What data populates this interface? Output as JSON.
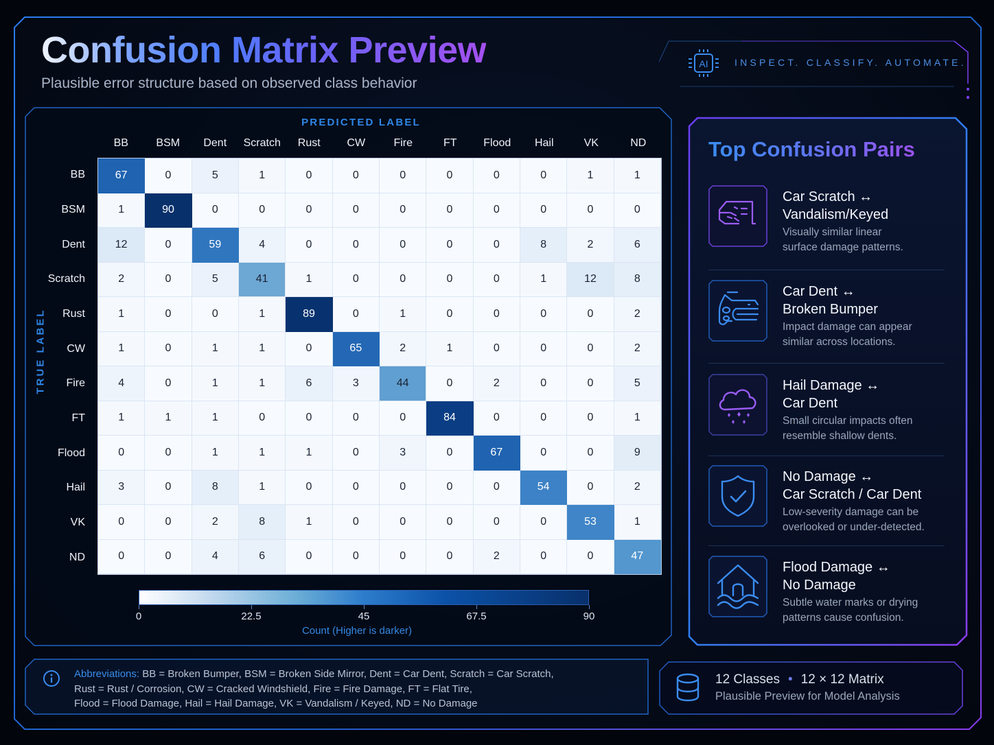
{
  "header": {
    "title": "Confusion Matrix Preview",
    "subtitle": "Plausible error structure based on observed class behavior",
    "tagline": "INSPECT. CLASSIFY. AUTOMATE.",
    "tagline_icon": "ai-chip-icon",
    "tagline_icon_text": "AI"
  },
  "matrix": {
    "x_axis_label": "PREDICTED LABEL",
    "y_axis_label": "TRUE LABEL",
    "colorbar": {
      "ticks": [
        "0",
        "22.5",
        "45",
        "67.5",
        "90"
      ],
      "label": "Count (Higher is darker)"
    }
  },
  "chart_data": {
    "type": "heatmap",
    "title": "Confusion Matrix Preview",
    "subtitle": "Plausible error structure based on observed class behavior",
    "xlabel": "PREDICTED LABEL",
    "ylabel": "TRUE LABEL",
    "x_categories": [
      "BB",
      "BSM",
      "Dent",
      "Scratch",
      "Rust",
      "CW",
      "Fire",
      "FT",
      "Flood",
      "Hail",
      "VK",
      "ND"
    ],
    "y_categories": [
      "BB",
      "BSM",
      "Dent",
      "Scratch",
      "Rust",
      "CW",
      "Fire",
      "FT",
      "Flood",
      "Hail",
      "VK",
      "ND"
    ],
    "values": [
      [
        67,
        0,
        5,
        1,
        0,
        0,
        0,
        0,
        0,
        0,
        1,
        1
      ],
      [
        1,
        90,
        0,
        0,
        0,
        0,
        0,
        0,
        0,
        0,
        0,
        0
      ],
      [
        12,
        0,
        59,
        4,
        0,
        0,
        0,
        0,
        0,
        8,
        2,
        6
      ],
      [
        2,
        0,
        5,
        41,
        1,
        0,
        0,
        0,
        0,
        1,
        12,
        8
      ],
      [
        1,
        0,
        0,
        1,
        89,
        0,
        1,
        0,
        0,
        0,
        0,
        2
      ],
      [
        1,
        0,
        1,
        1,
        0,
        65,
        2,
        1,
        0,
        0,
        0,
        2
      ],
      [
        4,
        0,
        1,
        1,
        6,
        3,
        44,
        0,
        2,
        0,
        0,
        5
      ],
      [
        1,
        1,
        1,
        0,
        0,
        0,
        0,
        84,
        0,
        0,
        0,
        1
      ],
      [
        0,
        0,
        1,
        1,
        1,
        0,
        3,
        0,
        67,
        0,
        0,
        9
      ],
      [
        3,
        0,
        8,
        1,
        0,
        0,
        0,
        0,
        0,
        54,
        0,
        2
      ],
      [
        0,
        0,
        2,
        8,
        1,
        0,
        0,
        0,
        0,
        0,
        53,
        1
      ],
      [
        0,
        0,
        4,
        6,
        0,
        0,
        0,
        0,
        2,
        0,
        0,
        47
      ]
    ],
    "colorbar": {
      "min": 0,
      "max": 90,
      "ticks": [
        0,
        22.5,
        45,
        67.5,
        90
      ],
      "label": "Count (Higher is darker)",
      "colormap": "Blues"
    },
    "grid": true,
    "legend_position": "bottom"
  },
  "pairs_panel": {
    "title": "Top Confusion Pairs",
    "items": [
      {
        "icon": "car-door-scratch-icon",
        "line1": "Car Scratch ↔",
        "line2": "Vandalism/Keyed",
        "desc1": "Visually similar linear",
        "desc2": "surface damage patterns.",
        "color": "#8b5cf6"
      },
      {
        "icon": "car-front-dent-icon",
        "line1": "Car Dent ↔",
        "line2": "Broken Bumper",
        "desc1": "Impact damage can appear",
        "desc2": "similar across locations.",
        "color": "#3b82f6"
      },
      {
        "icon": "hail-cloud-icon",
        "line1": "Hail Damage ↔",
        "line2": "Car Dent",
        "desc1": "Small circular impacts often",
        "desc2": "resemble shallow dents.",
        "color": "#8b5cf6"
      },
      {
        "icon": "shield-check-icon",
        "line1": "No Damage ↔",
        "line2": "Car Scratch / Car Dent",
        "desc1": "Low-severity damage can be",
        "desc2": "overlooked or under-detected.",
        "color": "#3b82f6"
      },
      {
        "icon": "flooded-house-icon",
        "line1": "Flood Damage ↔",
        "line2": "No Damage",
        "desc1": "Subtle water marks or drying",
        "desc2": "patterns cause confusion.",
        "color": "#3b82f6"
      }
    ]
  },
  "footer": {
    "abbreviations_label": "Abbreviations:",
    "abbreviations_line1": "BB = Broken Bumper, BSM = Broken Side Mirror, Dent = Car Dent, Scratch = Car Scratch,",
    "abbreviations_line2": "Rust = Rust / Corrosion, CW = Cracked Windshield, Fire = Fire Damage, FT = Flat Tire,",
    "abbreviations_line3": "Flood = Flood Damage, Hail = Hail Damage, VK = Vandalism / Keyed, ND = No Damage",
    "stats_classes": "12 Classes",
    "stats_matrix": "12 × 12 Matrix",
    "stats_subtitle": "Plausible Preview for Model Analysis"
  },
  "colors": {
    "accent_blue": "#2f86e6",
    "accent_purple": "#9a52ee",
    "background": "#050b18",
    "cell_light": "#f3f7fd",
    "cell_dark": "#08306b"
  }
}
